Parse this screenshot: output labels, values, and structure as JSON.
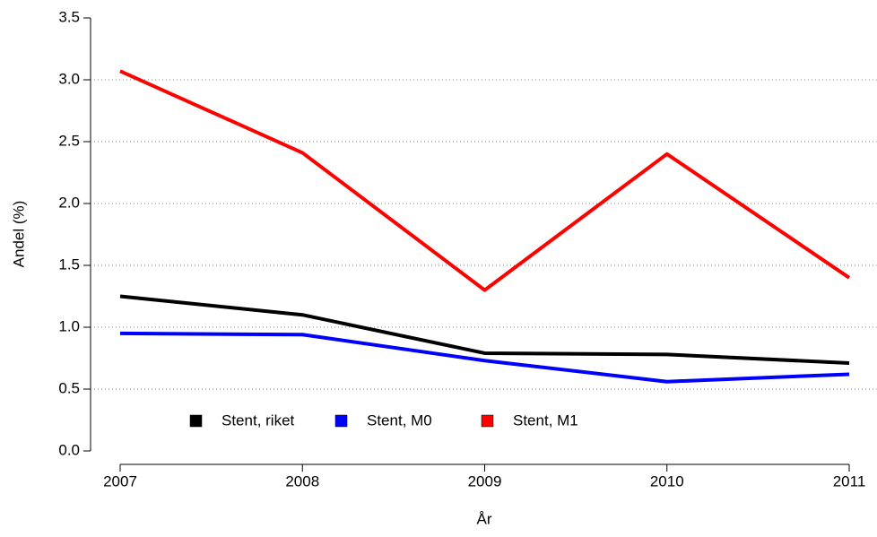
{
  "chart_data": {
    "type": "line",
    "xlabel": "År",
    "ylabel": "Andel (%)",
    "categories": [
      "2007",
      "2008",
      "2009",
      "2010",
      "2011"
    ],
    "series": [
      {
        "name": "Stent, riket",
        "color": "#000000",
        "values": [
          1.25,
          1.1,
          0.79,
          0.78,
          0.71
        ]
      },
      {
        "name": "Stent, M0",
        "color": "#0000ff",
        "values": [
          0.95,
          0.94,
          0.73,
          0.56,
          0.62
        ]
      },
      {
        "name": "Stent, M1",
        "color": "#ff0000",
        "values": [
          3.07,
          2.41,
          1.3,
          2.4,
          1.4
        ]
      }
    ],
    "ylim": [
      0,
      3.5
    ],
    "yticks": [
      {
        "value": 0,
        "label": "0.0"
      },
      {
        "value": 0.5,
        "label": "0.5"
      },
      {
        "value": 1,
        "label": "1.0"
      },
      {
        "value": 1.5,
        "label": "1.5"
      },
      {
        "value": 2,
        "label": "2.0"
      },
      {
        "value": 2.5,
        "label": "2.5"
      },
      {
        "value": 3,
        "label": "3.0"
      },
      {
        "value": 3.5,
        "label": "3.5"
      }
    ],
    "grid": true,
    "legend": "bottom"
  }
}
